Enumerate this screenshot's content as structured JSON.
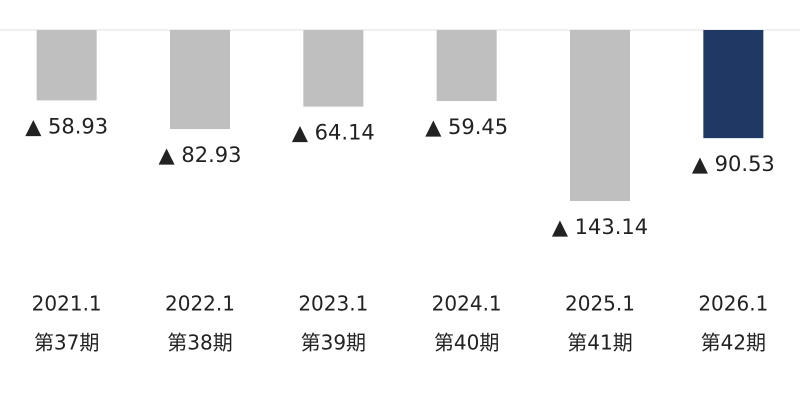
{
  "chart_data": {
    "type": "bar",
    "categories": [
      "2021.1",
      "2022.1",
      "2023.1",
      "2024.1",
      "2025.1",
      "2026.1"
    ],
    "sub_categories": [
      "第37期",
      "第38期",
      "第39期",
      "第40期",
      "第41期",
      "第42期"
    ],
    "values": [
      -58.93,
      -82.93,
      -64.14,
      -59.45,
      -143.14,
      -90.53
    ],
    "value_labels": [
      "▲ 58.93",
      "▲ 82.93",
      "▲ 64.14",
      "▲ 59.45",
      "▲ 143.14",
      "▲ 90.53"
    ],
    "colors": [
      "#bfbfbf",
      "#bfbfbf",
      "#bfbfbf",
      "#bfbfbf",
      "#bfbfbf",
      "#1f3864"
    ]
  }
}
